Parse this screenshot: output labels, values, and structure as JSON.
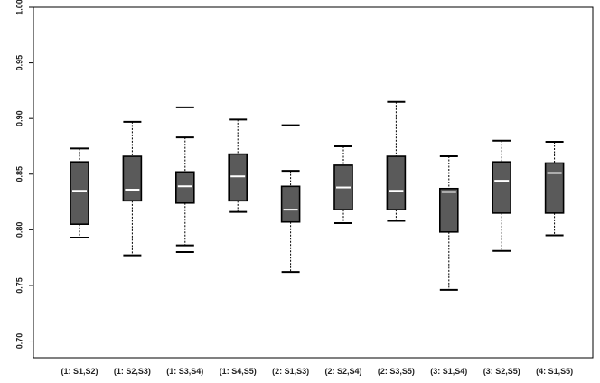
{
  "chart_data": {
    "type": "boxplot",
    "title": "",
    "xlabel": "",
    "ylabel": "",
    "ylim": [
      0.685,
      1.0
    ],
    "yticks": [
      0.7,
      0.75,
      0.8,
      0.85,
      0.9,
      0.95,
      1.0
    ],
    "ytick_labels": [
      "0.70",
      "0.75",
      "0.80",
      "0.85",
      "0.90",
      "0.95",
      "1.00"
    ],
    "grid": false,
    "box_color": "#5a5a5a",
    "median_color": "#ffffff",
    "categories": [
      "(1: S1,S2)",
      "(1: S2,S3)",
      "(1: S3,S4)",
      "(1: S4,S5)",
      "(2: S1,S3)",
      "(2: S2,S4)",
      "(2: S3,S5)",
      "(3: S1,S4)",
      "(3: S2,S5)",
      "(4: S1,S5)"
    ],
    "boxes": [
      {
        "whisker_low": 0.793,
        "q1": 0.805,
        "median": 0.835,
        "q3": 0.861,
        "whisker_high": 0.873,
        "outliers": []
      },
      {
        "whisker_low": 0.777,
        "q1": 0.826,
        "median": 0.836,
        "q3": 0.866,
        "whisker_high": 0.897,
        "outliers": []
      },
      {
        "whisker_low": 0.786,
        "q1": 0.824,
        "median": 0.839,
        "q3": 0.852,
        "whisker_high": 0.883,
        "outliers": [
          0.78,
          0.91
        ]
      },
      {
        "whisker_low": 0.816,
        "q1": 0.826,
        "median": 0.848,
        "q3": 0.868,
        "whisker_high": 0.899,
        "outliers": []
      },
      {
        "whisker_low": 0.762,
        "q1": 0.807,
        "median": 0.818,
        "q3": 0.839,
        "whisker_high": 0.853,
        "outliers": [
          0.894
        ]
      },
      {
        "whisker_low": 0.806,
        "q1": 0.818,
        "median": 0.838,
        "q3": 0.858,
        "whisker_high": 0.875,
        "outliers": []
      },
      {
        "whisker_low": 0.808,
        "q1": 0.818,
        "median": 0.835,
        "q3": 0.866,
        "whisker_high": 0.915,
        "outliers": []
      },
      {
        "whisker_low": 0.746,
        "q1": 0.798,
        "median": 0.834,
        "q3": 0.837,
        "whisker_high": 0.866,
        "outliers": []
      },
      {
        "whisker_low": 0.781,
        "q1": 0.815,
        "median": 0.844,
        "q3": 0.861,
        "whisker_high": 0.88,
        "outliers": []
      },
      {
        "whisker_low": 0.795,
        "q1": 0.815,
        "median": 0.851,
        "q3": 0.86,
        "whisker_high": 0.879,
        "outliers": []
      }
    ]
  }
}
